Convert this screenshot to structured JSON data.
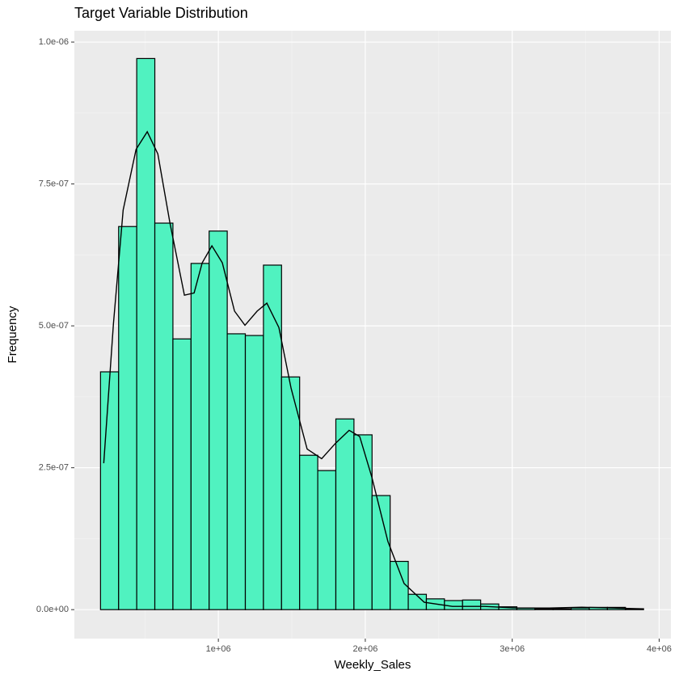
{
  "chart_data": {
    "type": "histogram",
    "title": "Target Variable Distribution",
    "x_label": "Weekly_Sales",
    "y_label": "Frequency",
    "bins": [
      198000,
      321200,
      444400,
      567600,
      690800,
      814000,
      937200,
      1060400,
      1183600,
      1306800,
      1430000,
      1553200,
      1676400,
      1799600,
      1922800,
      2046000,
      2169200,
      2292400,
      2415600,
      2538800,
      2662000,
      2785200,
      2908400,
      3031600,
      3154800,
      3278000,
      3401200,
      3524400,
      3647600,
      3770800,
      3894000
    ],
    "values": [
      4.19e-07,
      6.75e-07,
      9.71e-07,
      6.81e-07,
      4.77e-07,
      6.1e-07,
      6.67e-07,
      4.86e-07,
      4.83e-07,
      6.07e-07,
      4.1e-07,
      2.72e-07,
      2.45e-07,
      3.36e-07,
      3.08e-07,
      2.01e-07,
      8.5e-08,
      2.7e-08,
      1.9e-08,
      1.6e-08,
      1.7e-08,
      1e-08,
      5e-09,
      3e-09,
      1.5e-09,
      1.5e-09,
      3e-09,
      4e-09,
      4e-09,
      1.5e-09
    ],
    "color": "#50f2c0",
    "density_x": [
      220000,
      286000,
      352000,
      440000,
      516000,
      588000,
      670000,
      769000,
      835000,
      890000,
      956000,
      1027000,
      1110000,
      1181000,
      1264000,
      1330000,
      1412000,
      1495000,
      1604000,
      1703000,
      1797000,
      1890000,
      1962000,
      2044000,
      2154000,
      2264000,
      2401000,
      2593000,
      2813000,
      3033000,
      3253000,
      3473000,
      3692000,
      3896000
    ],
    "density_y": [
      2.58e-07,
      5.04e-07,
      7.04e-07,
      8.11e-07,
      8.42e-07,
      8.03e-07,
      6.82e-07,
      5.54e-07,
      5.58e-07,
      6.11e-07,
      6.41e-07,
      6.11e-07,
      5.26e-07,
      5.01e-07,
      5.26e-07,
      5.4e-07,
      4.97e-07,
      3.9e-07,
      2.83e-07,
      2.66e-07,
      2.93e-07,
      3.16e-07,
      3.05e-07,
      2.34e-07,
      1.2e-07,
      4.6e-08,
      1.3e-08,
      5.7e-09,
      5.7e-09,
      2.8e-09,
      2.8e-09,
      4.3e-09,
      2.8e-09,
      1.4e-09
    ],
    "density_color": "#000000",
    "xlim": [
      20000,
      4080000
    ],
    "ylim": [
      -5.1e-08,
      1.02e-06
    ],
    "xticks": [
      {
        "value": 1000000,
        "label": "1e+06"
      },
      {
        "value": 2000000,
        "label": "2e+06"
      },
      {
        "value": 3000000,
        "label": "3e+06"
      },
      {
        "value": 4000000,
        "label": "4e+06"
      }
    ],
    "yticks": [
      {
        "value": 0,
        "label": "0.0e+00"
      },
      {
        "value": 2.5e-07,
        "label": "2.5e-07"
      },
      {
        "value": 5e-07,
        "label": "5.0e-07"
      },
      {
        "value": 7.5e-07,
        "label": "7.5e-07"
      },
      {
        "value": 1e-06,
        "label": "1.0e-06"
      }
    ],
    "grid": true
  }
}
